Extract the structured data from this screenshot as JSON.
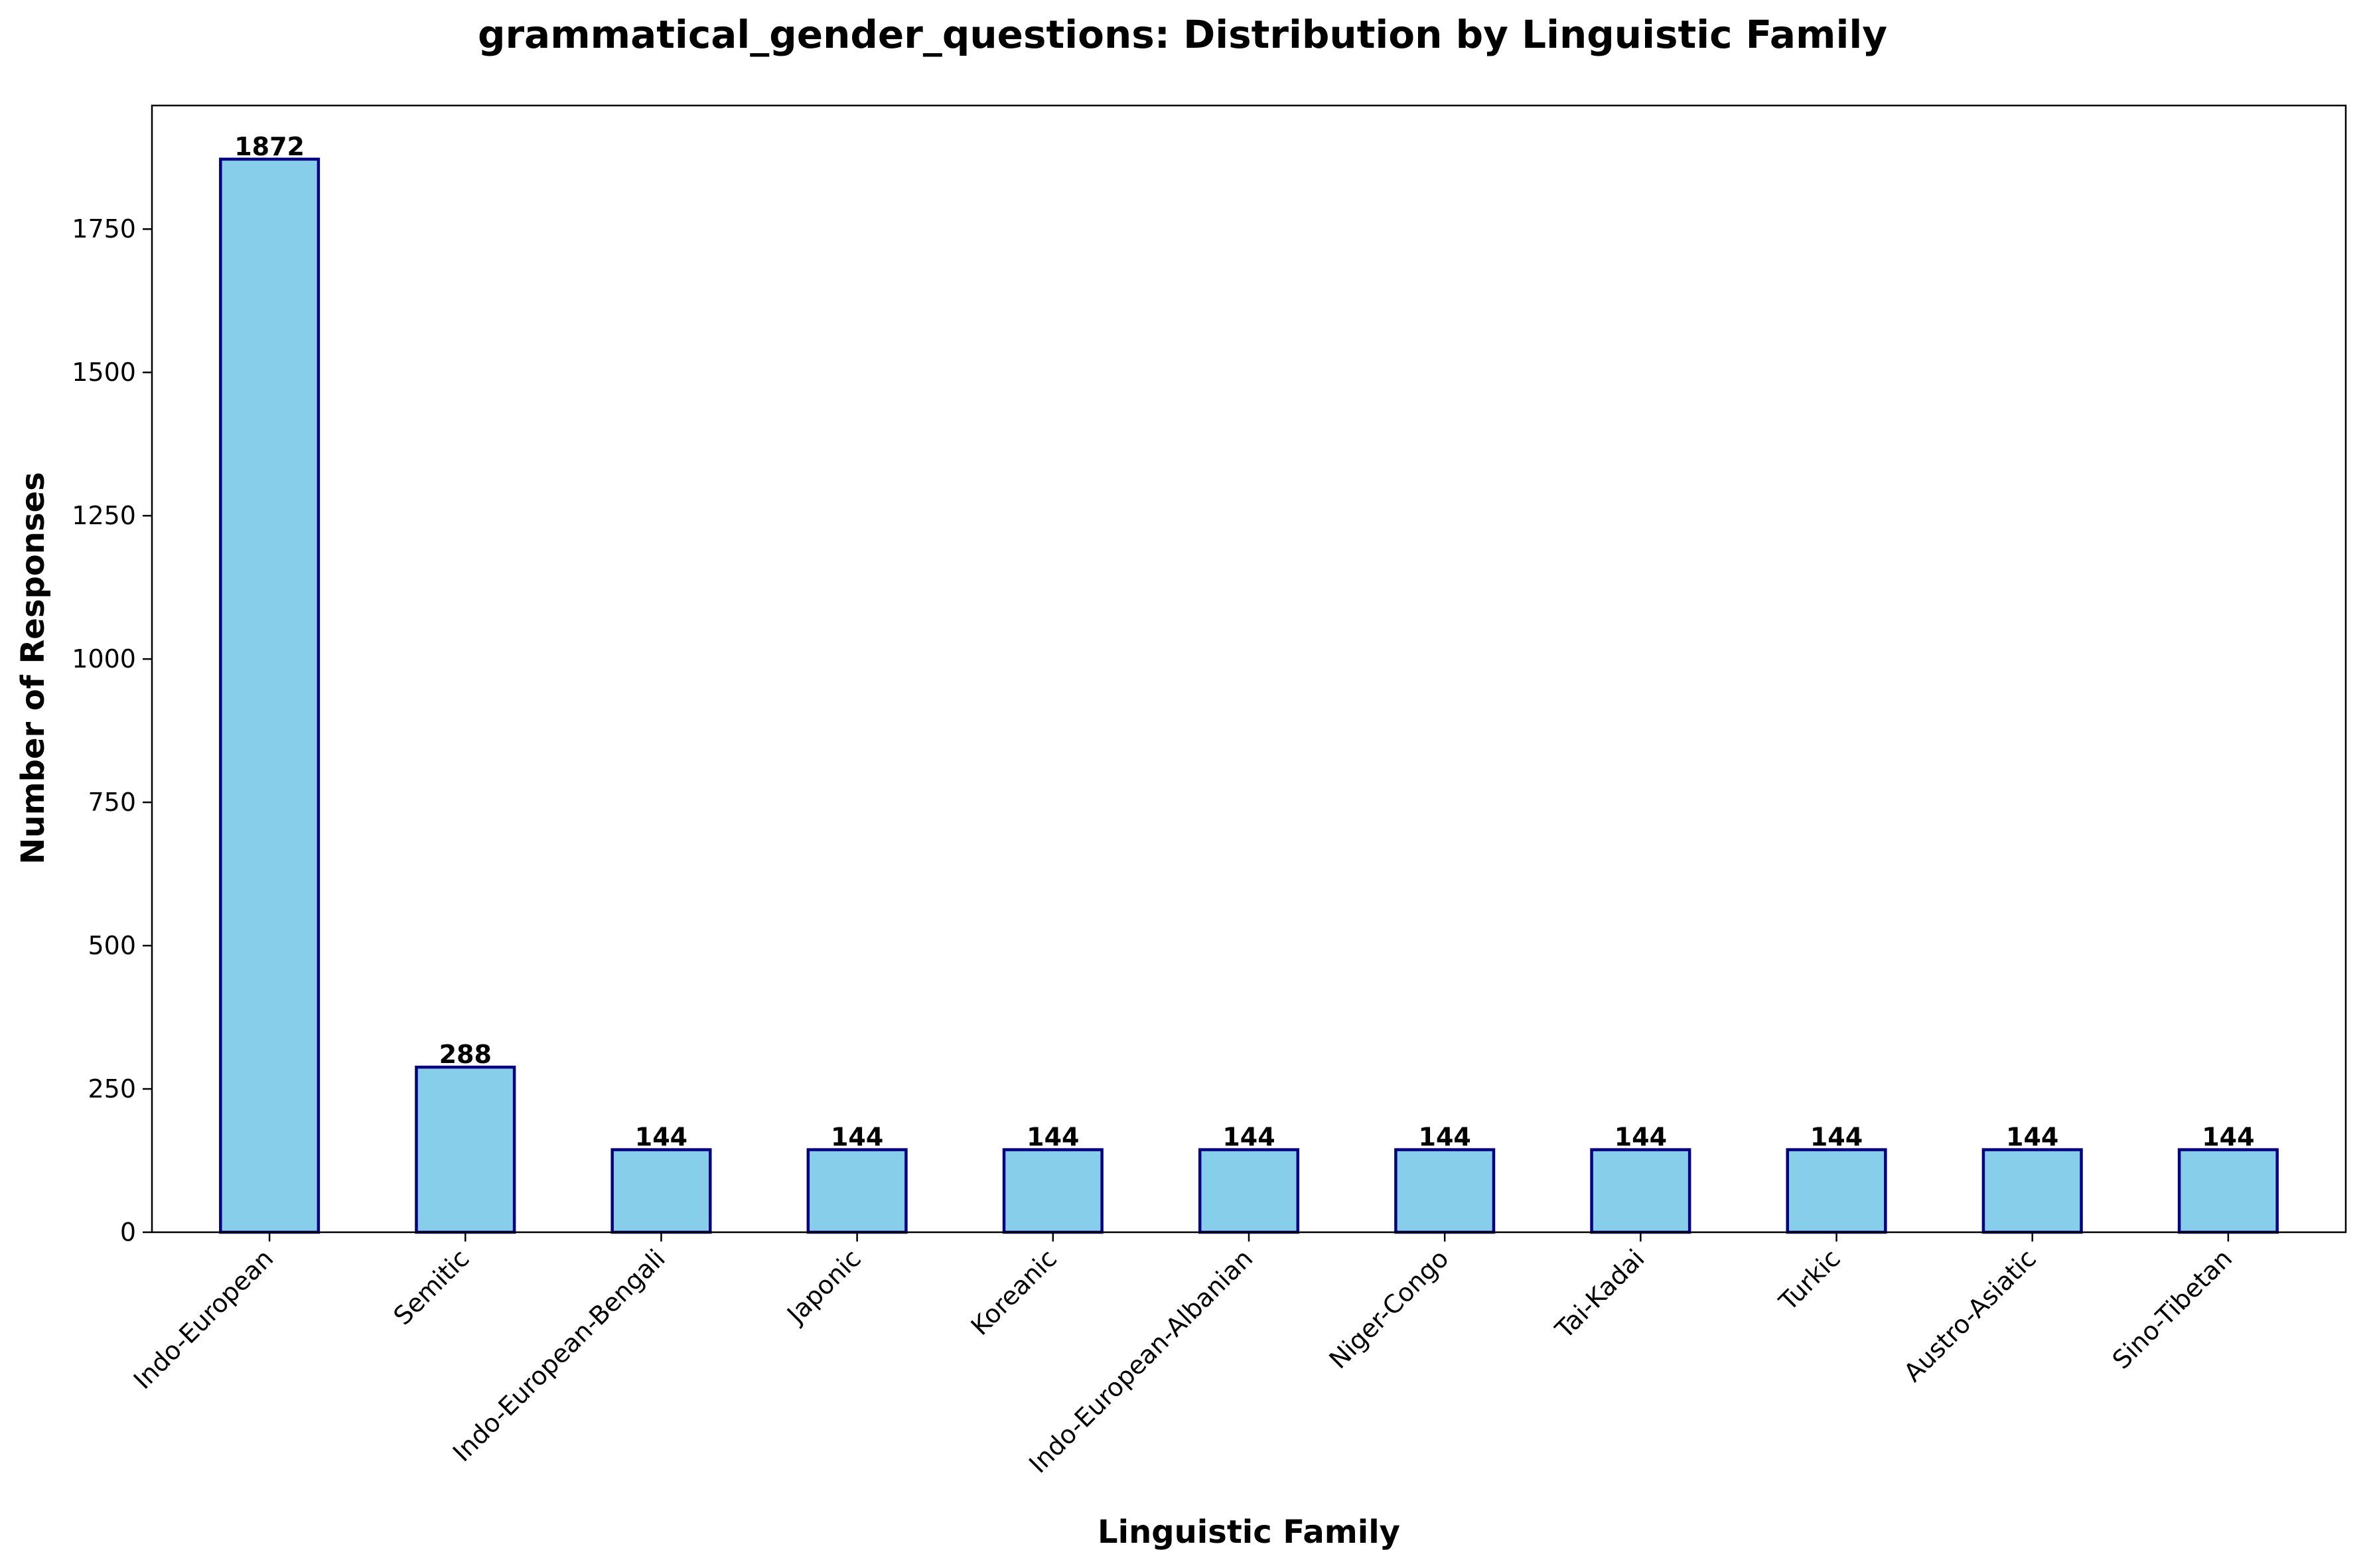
{
  "chart_data": {
    "type": "bar",
    "title": "grammatical_gender_questions: Distribution by Linguistic Family",
    "xlabel": "Linguistic Family",
    "ylabel": "Number of Responses",
    "categories": [
      "Indo-European",
      "Semitic",
      "Indo-European-Bengali",
      "Japonic",
      "Koreanic",
      "Indo-European-Albanian",
      "Niger-Congo",
      "Tai-Kadai",
      "Turkic",
      "Austro-Asiatic",
      "Sino-Tibetan"
    ],
    "values": [
      1872,
      288,
      144,
      144,
      144,
      144,
      144,
      144,
      144,
      144,
      144
    ],
    "data_labels": [
      "1872",
      "288",
      "144",
      "144",
      "144",
      "144",
      "144",
      "144",
      "144",
      "144",
      "144"
    ],
    "ylim": [
      0,
      1965.6
    ],
    "yticks": [
      0,
      250,
      500,
      750,
      1000,
      1250,
      1500,
      1750
    ],
    "ytick_labels": [
      "0",
      "250",
      "500",
      "750",
      "1000",
      "1250",
      "1500",
      "1750"
    ],
    "grid": false,
    "legend": "none",
    "colors": {
      "bar_fill": "#87CEEB",
      "bar_edge": "#000080",
      "axis": "#000000",
      "text": "#000000"
    }
  }
}
